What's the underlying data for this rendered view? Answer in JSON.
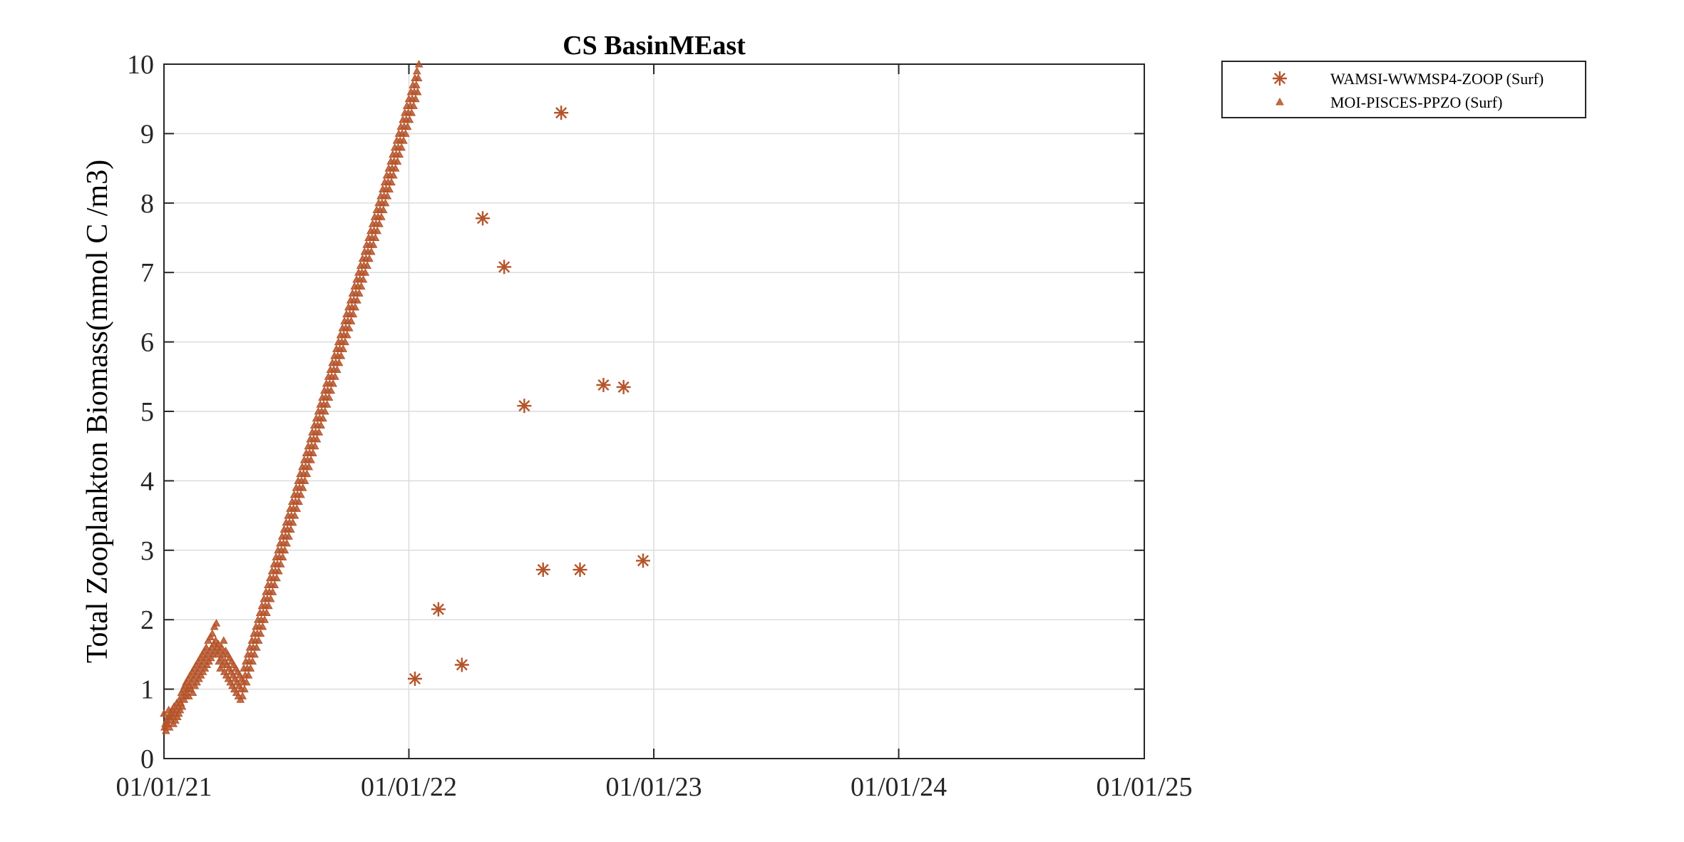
{
  "chart_data": {
    "type": "scatter",
    "title": "CS BasinMEast",
    "xlabel": "",
    "ylabel": "Total Zooplankton Biomass(mmol C /m3)",
    "xlim": [
      "2021-01-01",
      "2025-01-01"
    ],
    "ylim": [
      0,
      10
    ],
    "x_ticks": [
      "2021-01-01",
      "2022-01-01",
      "2023-01-01",
      "2024-01-01",
      "2025-01-01"
    ],
    "x_tick_labels": [
      "01/01/21",
      "01/01/22",
      "01/01/23",
      "01/01/24",
      "01/01/25"
    ],
    "y_ticks": [
      0,
      1,
      2,
      3,
      4,
      5,
      6,
      7,
      8,
      9,
      10
    ],
    "grid": true,
    "legend_position": "outside-top-right",
    "colors": {
      "marker": "#b5542a",
      "axis": "#262626",
      "grid": "#dcdcdc"
    },
    "series": [
      {
        "name": "WAMSI-WWMSP4-ZOOP (Surf)",
        "marker": "asterisk",
        "points": [
          {
            "x": "2022-01-10",
            "y": 1.15
          },
          {
            "x": "2022-02-14",
            "y": 2.15
          },
          {
            "x": "2022-03-21",
            "y": 1.35
          },
          {
            "x": "2022-04-21",
            "y": 7.78
          },
          {
            "x": "2022-05-23",
            "y": 7.08
          },
          {
            "x": "2022-06-22",
            "y": 5.08
          },
          {
            "x": "2022-07-20",
            "y": 2.72
          },
          {
            "x": "2022-08-16",
            "y": 9.3
          },
          {
            "x": "2022-09-13",
            "y": 2.72
          },
          {
            "x": "2022-10-18",
            "y": 5.38
          },
          {
            "x": "2022-11-17",
            "y": 5.35
          },
          {
            "x": "2022-12-16",
            "y": 2.85
          }
        ]
      },
      {
        "name": "MOI-PISCES-PPZO (Surf)",
        "marker": "triangle",
        "start_date": "2021-01-01",
        "step_days": 1,
        "y": [
          0.65,
          0.45,
          0.5,
          0.4,
          0.55,
          0.5,
          0.6,
          0.7,
          0.45,
          0.6,
          0.55,
          0.65,
          0.7,
          0.6,
          0.5,
          0.75,
          0.65,
          0.55,
          0.7,
          0.8,
          0.6,
          0.75,
          0.65,
          0.85,
          0.7,
          0.8,
          0.95,
          0.75,
          0.9,
          1.0,
          0.85,
          1.05,
          0.9,
          1.1,
          0.95,
          1.0,
          1.15,
          0.9,
          1.05,
          1.2,
          1.0,
          1.1,
          1.25,
          0.95,
          1.15,
          1.3,
          1.05,
          1.2,
          1.35,
          1.1,
          1.25,
          1.4,
          1.15,
          1.3,
          1.45,
          1.2,
          1.35,
          1.5,
          1.25,
          1.4,
          1.55,
          1.3,
          1.45,
          1.6,
          1.35,
          1.5,
          1.7,
          1.4,
          1.55,
          1.75,
          1.45,
          1.6,
          1.8,
          1.5,
          1.65,
          1.9,
          1.55,
          1.7,
          1.95,
          1.6,
          1.5,
          1.65,
          1.4,
          1.55,
          1.3,
          1.45,
          1.6,
          1.35,
          1.5,
          1.7,
          1.25,
          1.4,
          1.55,
          1.2,
          1.35,
          1.5,
          1.15,
          1.3,
          1.45,
          1.1,
          1.25,
          1.4,
          1.05,
          1.2,
          1.35,
          1.0,
          1.15,
          1.3,
          0.95,
          1.1,
          1.25,
          0.9,
          1.05,
          1.2,
          0.85,
          1.0,
          1.15,
          0.9,
          1.1,
          1.3,
          1.0,
          1.2,
          1.4,
          1.1,
          1.3,
          1.5,
          1.2,
          1.4,
          1.6,
          1.3,
          1.5,
          1.7,
          1.4,
          1.6,
          1.8,
          1.5,
          1.7,
          1.9,
          1.6,
          1.8,
          2.0,
          1.7,
          1.9,
          2.1,
          1.8,
          2.0,
          2.2,
          1.9,
          2.1,
          2.3,
          2.0,
          2.2,
          2.4,
          2.1,
          2.3,
          2.5,
          2.2,
          2.4,
          2.6,
          2.3,
          2.5,
          2.7,
          2.4,
          2.6,
          2.8,
          2.5,
          2.7,
          2.9,
          2.6,
          2.8,
          3.0,
          2.7,
          2.9,
          3.1,
          2.8,
          3.0,
          3.2,
          2.9,
          3.1,
          3.3,
          3.0,
          3.2,
          3.4,
          3.1,
          3.3,
          3.5,
          3.2,
          3.4,
          3.6,
          3.3,
          3.5,
          3.7,
          3.4,
          3.6,
          3.8,
          3.5,
          3.7,
          3.9,
          3.6,
          3.8,
          4.0,
          3.7,
          3.9,
          4.1,
          3.8,
          4.0,
          4.2,
          3.9,
          4.1,
          4.3,
          4.0,
          4.2,
          4.4,
          4.1,
          4.3,
          4.5,
          4.2,
          4.4,
          4.6,
          4.3,
          4.5,
          4.7,
          4.4,
          4.6,
          4.8,
          4.5,
          4.7,
          4.9,
          4.6,
          4.8,
          5.0,
          4.7,
          4.9,
          5.1,
          4.8,
          5.0,
          5.2,
          4.9,
          5.1,
          5.3,
          5.0,
          5.2,
          5.4,
          5.1,
          5.3,
          5.5,
          5.2,
          5.4,
          5.6,
          5.3,
          5.5,
          5.7,
          5.4,
          5.6,
          5.8,
          5.5,
          5.7,
          5.9,
          5.6,
          5.8,
          6.0,
          5.7,
          5.9,
          6.1,
          5.8,
          6.0,
          6.2,
          5.9,
          6.1,
          6.3,
          6.0,
          6.2,
          6.4,
          6.1,
          6.3,
          6.5,
          6.2,
          6.4,
          6.6,
          6.3,
          6.5,
          6.7,
          6.4,
          6.6,
          6.8,
          6.5,
          6.7,
          6.9,
          6.6,
          6.8,
          7.0,
          6.7,
          6.9,
          7.1,
          6.8,
          7.0,
          7.2,
          6.9,
          7.1,
          7.3,
          7.0,
          7.2,
          7.4,
          7.1,
          7.3,
          7.5,
          7.2,
          7.4,
          7.6,
          7.3,
          7.5,
          7.7,
          7.4,
          7.6,
          7.8,
          7.5,
          7.7,
          7.9,
          7.6,
          7.8,
          8.0,
          7.7,
          7.9,
          8.1,
          7.8,
          8.0,
          8.2,
          7.9,
          8.1,
          8.3,
          8.0,
          8.2,
          8.4,
          8.1,
          8.3,
          8.5,
          8.2,
          8.4,
          8.6,
          8.3,
          8.5,
          8.7,
          8.4,
          8.6,
          8.8,
          8.5,
          8.7,
          8.9,
          8.6,
          8.8,
          9.0,
          8.7,
          8.9,
          9.1,
          8.8,
          9.0,
          9.2,
          8.9,
          9.1,
          9.3,
          9.0,
          9.2,
          9.4,
          9.1,
          9.3,
          9.5,
          9.2,
          9.4,
          9.6,
          9.3,
          9.5,
          9.7,
          9.4,
          9.6,
          9.8,
          9.5,
          9.7,
          9.9,
          9.6,
          9.8,
          10.0
        ]
      }
    ]
  }
}
